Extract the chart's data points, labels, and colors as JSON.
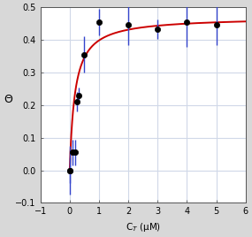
{
  "title": "",
  "xlabel": "C$_T$ (μM)",
  "ylabel": "Θ",
  "xlim": [
    -1,
    6
  ],
  "ylim": [
    -0.1,
    0.5
  ],
  "xticks": [
    -1,
    0,
    1,
    2,
    3,
    4,
    5,
    6
  ],
  "yticks": [
    -0.1,
    0.0,
    0.1,
    0.2,
    0.3,
    0.4,
    0.5
  ],
  "data_x": [
    0.0,
    0.02,
    0.1,
    0.2,
    0.25,
    0.3,
    0.5,
    1.0,
    2.0,
    3.0,
    4.0,
    5.0
  ],
  "data_y": [
    0.0,
    0.0,
    0.055,
    0.055,
    0.21,
    0.23,
    0.355,
    0.455,
    0.445,
    0.433,
    0.453,
    0.447
  ],
  "data_yerr": [
    0.04,
    0.075,
    0.04,
    0.04,
    0.03,
    0.025,
    0.055,
    0.04,
    0.062,
    0.03,
    0.075,
    0.062
  ],
  "curve_color": "#cc0000",
  "point_color": "#000000",
  "errbar_color": "#3344cc",
  "plot_bg_color": "#ffffff",
  "fig_bg_color": "#d8d8d8",
  "grid_color": "#d0d8e8",
  "curve_Bmax": 0.47,
  "curve_Kd": 0.18,
  "figsize": [
    2.85,
    2.68
  ],
  "dpi": 100
}
